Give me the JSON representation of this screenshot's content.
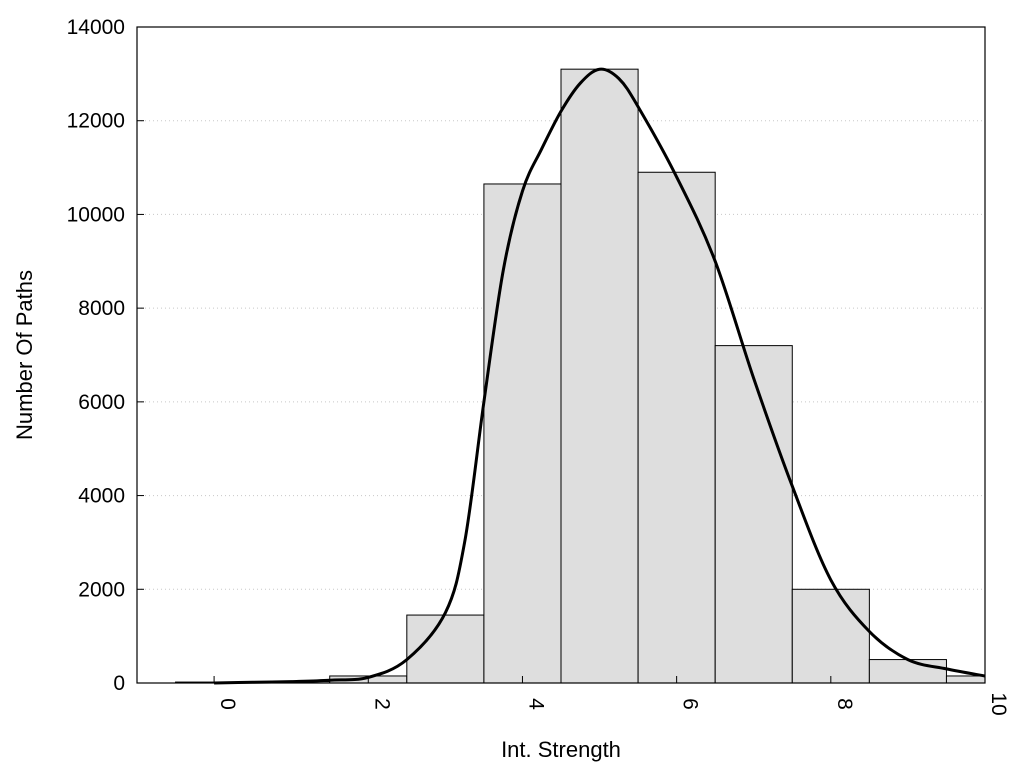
{
  "chart_data": {
    "type": "bar",
    "xlabel": "Int. Strength",
    "ylabel": "Number Of Paths",
    "xlim": [
      -1,
      10
    ],
    "ylim": [
      0,
      14000
    ],
    "x_ticks": [
      "0",
      "2",
      "4",
      "6",
      "8",
      "10"
    ],
    "y_ticks": [
      "0",
      "2000",
      "4000",
      "6000",
      "8000",
      "10000",
      "12000",
      "14000"
    ],
    "bin_width": 1,
    "categories": [
      "0",
      "1",
      "2",
      "3",
      "4",
      "5",
      "6",
      "7",
      "8",
      "9",
      "10"
    ],
    "values": [
      20,
      30,
      150,
      1450,
      10650,
      13100,
      10900,
      7200,
      2000,
      500,
      150
    ],
    "grid": "horizontal dotted",
    "bar_color": "#dedede",
    "curve": {
      "type": "line",
      "x": [
        0,
        0.5,
        1,
        1.5,
        2,
        2.5,
        3,
        3.25,
        3.5,
        3.75,
        4,
        4.25,
        4.5,
        4.75,
        5,
        5.25,
        5.5,
        6,
        6.5,
        7,
        7.5,
        8,
        8.5,
        9,
        9.5,
        10
      ],
      "y": [
        0,
        15,
        30,
        60,
        120,
        500,
        1500,
        3000,
        6000,
        8800,
        10500,
        11400,
        12200,
        12800,
        13100,
        12900,
        12300,
        10800,
        9000,
        6500,
        4200,
        2200,
        1100,
        500,
        300,
        150
      ],
      "color": "#000000"
    }
  }
}
